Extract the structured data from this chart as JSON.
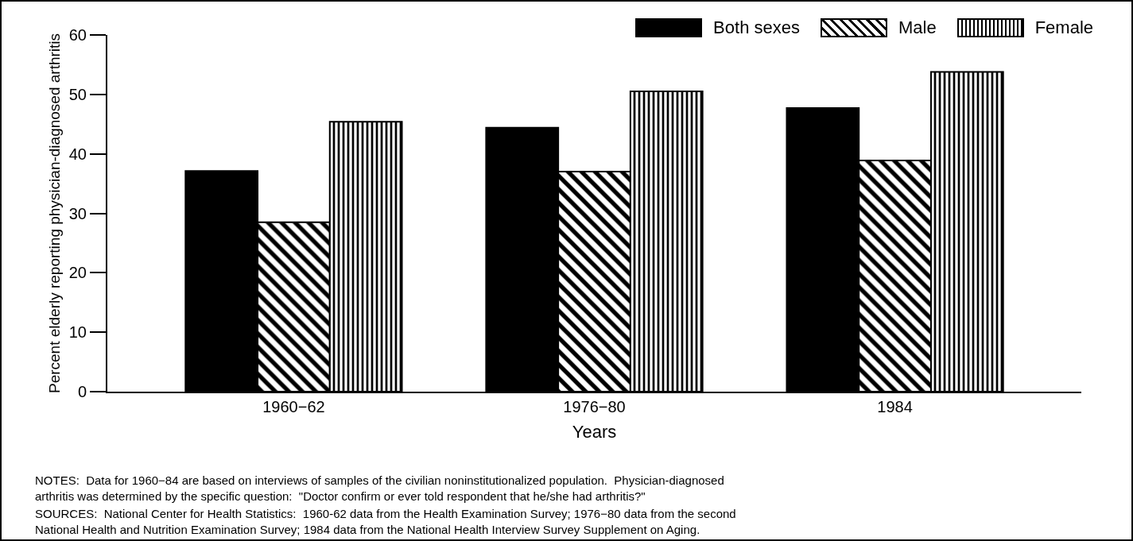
{
  "chart_data": {
    "type": "bar",
    "xlabel": "Years",
    "ylabel": "Percent elderly reporting physician-diagnosed arthritis",
    "categories": [
      "1960−62",
      "1976−80",
      "1984"
    ],
    "series": [
      {
        "name": "Both sexes",
        "color": "#000000",
        "values": [
          37.1,
          44.4,
          47.7
        ]
      },
      {
        "name": "Male",
        "color": "#000000",
        "values": [
          28.5,
          37.0,
          38.9
        ]
      },
      {
        "name": "Female",
        "color": "#000000",
        "values": [
          45.4,
          50.5,
          53.8
        ]
      }
    ],
    "ylim": [
      0,
      60
    ],
    "yticks": [
      0,
      10,
      20,
      30,
      40,
      50,
      60
    ],
    "grid": false,
    "legend": "top right",
    "annotations": [
      "NOTES:  Data for 1960−84 are based on interviews of samples of the civilian noninstitutionalized population.  Physician-diagnosed\narthritis was determined by the specific question:  \"Doctor confirm or ever told respondent that he/she had arthritis?\"",
      "SOURCES:  National Center for Health Statistics:  1960-62 data from the Health Examination Survey; 1976−80 data from the second\nNational Health and Nutrition Examination Survey; 1984 data from the National Health Interview Survey Supplement on Aging."
    ]
  }
}
